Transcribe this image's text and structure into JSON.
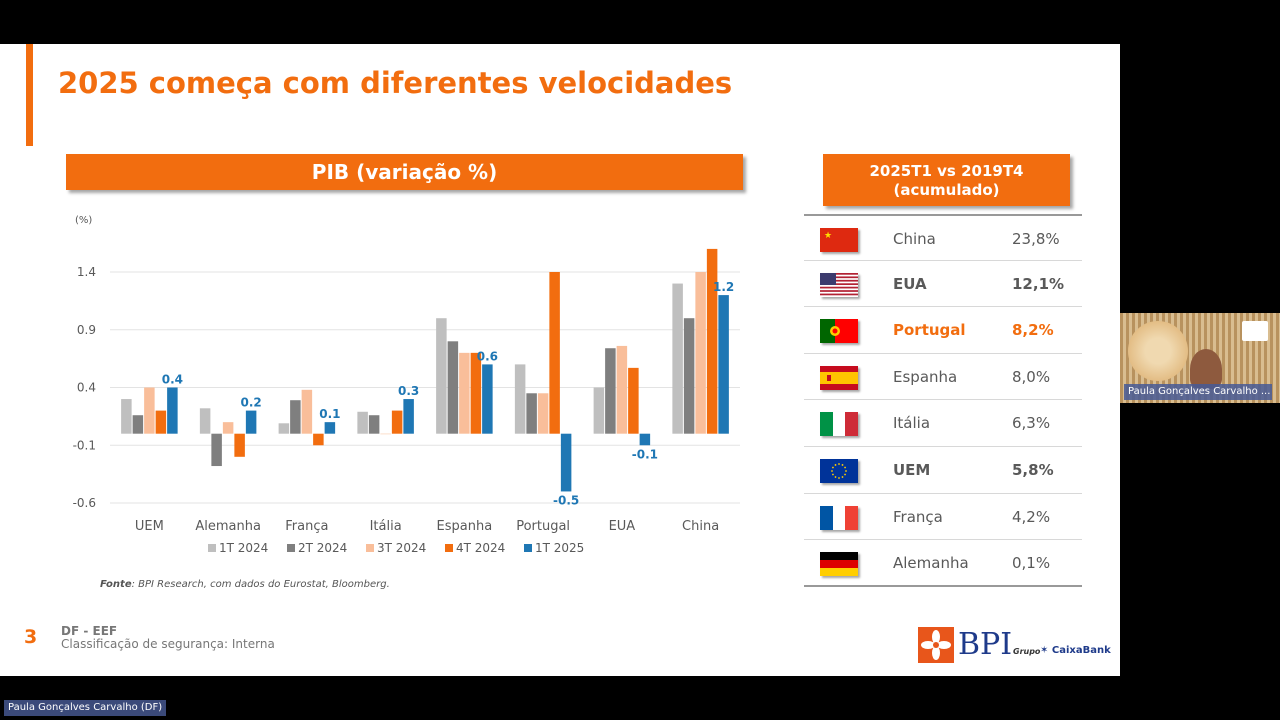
{
  "slide": {
    "title": "2025 começa com diferentes velocidades",
    "page_number": "3",
    "footer_dept": "DF - EEF",
    "footer_classification": "Classificação de segurança: Interna",
    "source_label": "Fonte",
    "source_text": ": BPI Research, com dados do Eurostat, Bloomberg.",
    "logo_text": "BPI",
    "grupo_text": "Grupo",
    "caixabank_text": "CaixaBank"
  },
  "chart_data": {
    "type": "bar",
    "title": "PIB (variação %)",
    "unit_label": "(%)",
    "categories": [
      "UEM",
      "Alemanha",
      "França",
      "Itália",
      "Espanha",
      "Portugal",
      "EUA",
      "China"
    ],
    "series": [
      {
        "name": "1T 2024",
        "color": "#bfbfbf",
        "values": [
          0.3,
          0.22,
          0.09,
          0.19,
          1.0,
          0.6,
          0.4,
          1.3
        ]
      },
      {
        "name": "2T 2024",
        "color": "#7f7f7f",
        "values": [
          0.16,
          -0.28,
          0.29,
          0.16,
          0.8,
          0.35,
          0.74,
          1.0
        ]
      },
      {
        "name": "3T 2024",
        "color": "#f9be9a",
        "values": [
          0.4,
          0.1,
          0.38,
          0.0,
          0.7,
          0.35,
          0.76,
          1.4
        ]
      },
      {
        "name": "4T 2024",
        "color": "#f26d0f",
        "values": [
          0.2,
          -0.2,
          -0.1,
          0.2,
          0.7,
          1.4,
          0.57,
          1.6
        ]
      },
      {
        "name": "1T 2025",
        "color": "#1f77b4",
        "values": [
          0.4,
          0.2,
          0.1,
          0.3,
          0.6,
          -0.5,
          -0.1,
          1.2
        ]
      }
    ],
    "data_labels": [
      "0.4",
      "0.2",
      "0.1",
      "0.3",
      "0.6",
      "-0.5",
      "-0.1",
      "1.2"
    ],
    "y_ticks": [
      "1.4",
      "0.9",
      "0.4",
      "-0.1",
      "-0.6"
    ],
    "y_tick_values": [
      1.4,
      0.9,
      0.4,
      -0.1,
      -0.6
    ],
    "ylim": [
      -0.6,
      1.4
    ],
    "grid": true,
    "legend_position": "bottom"
  },
  "cumulative": {
    "title_line1": "2025T1 vs 2019T4",
    "title_line2": "(acumulado)",
    "rows": [
      {
        "country": "China",
        "value": "23,8%",
        "flag": "china-flag",
        "style": ""
      },
      {
        "country": "EUA",
        "value": "12,1%",
        "flag": "usa-flag",
        "style": "bold"
      },
      {
        "country": "Portugal",
        "value": "8,2%",
        "flag": "portugal-flag",
        "style": "hl"
      },
      {
        "country": "Espanha",
        "value": "8,0%",
        "flag": "spain-flag",
        "style": ""
      },
      {
        "country": "Itália",
        "value": "6,3%",
        "flag": "italy-flag",
        "style": ""
      },
      {
        "country": "UEM",
        "value": "5,8%",
        "flag": "eu-flag",
        "style": "bold"
      },
      {
        "country": "França",
        "value": "4,2%",
        "flag": "france-flag",
        "style": ""
      },
      {
        "country": "Alemanha",
        "value": "0,1%",
        "flag": "germany-flag",
        "style": ""
      }
    ]
  },
  "video": {
    "participant_name": "Paula Gonçalves Carvalho ...",
    "presenter_label": "Paula Gonçalves Carvalho (DF)"
  },
  "colors": {
    "accent": "#f26d0f",
    "brand_blue": "#1e3a8a"
  }
}
